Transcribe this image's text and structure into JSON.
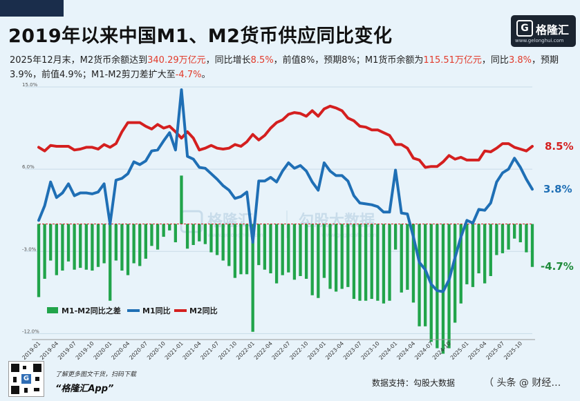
{
  "title": "2019年以来中国M1、M2货币供应同比变化",
  "logo": {
    "name": "格隆汇",
    "g": "G",
    "url": "www.gelonghui.com"
  },
  "subtitle": {
    "p1": "2025年12月末，M2货币余额达到",
    "m2_amount": "340.29万亿元",
    "p2": "，同比增长",
    "m2_growth": "8.5%",
    "p3": "，前值8%，预期8%；M1货币余额为",
    "m1_amount": "115.51万亿元",
    "p4": "，同比",
    "m1_growth": "3.8%",
    "p5": "，预期3.9%，前值4.9%；M1-M2剪刀差扩大至",
    "gap": "-4.7%",
    "p6": "。"
  },
  "watermark": {
    "left": "格隆汇",
    "right": "勾股大数据",
    "url_left": "www.gelonghui.com",
    "url_right": "www.gogudata.com"
  },
  "footer": {
    "hint": "了解更多图文干货，扫码下载",
    "app": "“格隆汇App”",
    "source": "数据支持：勾股大数据",
    "source_extra": "（ 头条 @ 财经…"
  },
  "colors": {
    "m2": "#d41f1f",
    "m1": "#1f6fb5",
    "diff": "#21a44a",
    "zero": "#d41f1f",
    "grid": "#c7dbe8",
    "label_diff": "#1e8a3a"
  },
  "chart_data": {
    "type": "line+bar",
    "ylim": [
      -12.5,
      15
    ],
    "yticks": [
      15,
      6,
      -3,
      -12
    ],
    "ytick_labels": [
      "15.0%",
      "6.0%",
      "-3.0%",
      "-12.0%"
    ],
    "x_labels": [
      "2019-01",
      "2019-04",
      "2019-07",
      "2019-10",
      "2020-01",
      "2020-04",
      "2020-07",
      "2020-10",
      "2021-01",
      "2021-04",
      "2021-07",
      "2021-10",
      "2022-01",
      "2022-04",
      "2022-07",
      "2022-10",
      "2023-01",
      "2023-04",
      "2023-07",
      "2023-10",
      "2024-01",
      "2024-04",
      "2024-07",
      "2024-10",
      "2025-01",
      "2025-04",
      "2025-07",
      "2025-10"
    ],
    "start_month": "2019-01",
    "series": [
      {
        "name": "M2同比",
        "type": "line",
        "values": [
          8.4,
          8.0,
          8.6,
          8.5,
          8.5,
          8.5,
          8.1,
          8.2,
          8.4,
          8.4,
          8.2,
          8.7,
          8.4,
          8.8,
          10.1,
          11.1,
          11.1,
          11.1,
          10.7,
          10.4,
          10.9,
          10.5,
          10.7,
          10.1,
          9.4,
          10.1,
          9.4,
          8.1,
          8.3,
          8.6,
          8.3,
          8.2,
          8.3,
          8.7,
          8.5,
          9.0,
          9.8,
          9.2,
          9.7,
          10.5,
          11.1,
          11.4,
          12.0,
          12.2,
          12.1,
          11.8,
          12.4,
          11.8,
          12.6,
          12.9,
          12.7,
          12.4,
          11.6,
          11.3,
          10.7,
          10.6,
          10.3,
          10.3,
          10.0,
          9.7,
          8.7,
          8.7,
          8.3,
          7.2,
          7.0,
          6.2,
          6.3,
          6.3,
          6.8,
          7.5,
          7.1,
          7.3,
          7.0,
          7.0,
          7.0,
          8.0,
          7.9,
          8.3,
          8.8,
          8.8,
          8.4,
          8.2,
          8.0,
          8.5
        ]
      },
      {
        "name": "M1同比",
        "type": "line",
        "values": [
          0.4,
          2.0,
          4.6,
          2.9,
          3.4,
          4.4,
          3.1,
          3.4,
          3.4,
          3.3,
          3.5,
          4.4,
          0.0,
          4.8,
          5.0,
          5.5,
          6.8,
          6.5,
          6.9,
          8.0,
          8.1,
          9.1,
          10.0,
          8.1,
          14.7,
          7.4,
          7.1,
          6.2,
          6.1,
          5.5,
          4.9,
          4.2,
          3.7,
          2.8,
          3.0,
          3.5,
          -2.0,
          4.7,
          4.7,
          5.1,
          4.6,
          5.8,
          6.7,
          6.1,
          6.4,
          5.8,
          4.6,
          3.7,
          6.7,
          5.8,
          5.3,
          5.3,
          4.7,
          3.1,
          2.3,
          2.2,
          2.1,
          1.9,
          1.3,
          1.3,
          5.9,
          1.2,
          1.1,
          -1.4,
          -4.2,
          -5.0,
          -6.6,
          -7.3,
          -7.4,
          -6.1,
          -3.7,
          -1.4,
          0.4,
          0.1,
          1.6,
          1.5,
          2.3,
          4.6,
          5.6,
          6.0,
          7.2,
          6.2,
          4.9,
          3.8
        ]
      },
      {
        "name": "M1-M2同比之差",
        "type": "bar",
        "values": [
          -8.0,
          -6.0,
          -4.0,
          -5.6,
          -5.1,
          -4.1,
          -5.0,
          -4.8,
          -5.0,
          -5.1,
          -4.7,
          -4.3,
          -8.4,
          -4.0,
          -5.1,
          -5.6,
          -4.3,
          -4.6,
          -3.8,
          -2.4,
          -2.8,
          -1.4,
          -0.7,
          -2.0,
          5.3,
          -2.7,
          -2.3,
          -1.9,
          -2.2,
          -3.1,
          -3.4,
          -4.0,
          -4.6,
          -5.9,
          -5.5,
          -5.5,
          -11.8,
          -4.5,
          -5.0,
          -5.4,
          -6.5,
          -5.6,
          -5.3,
          -6.1,
          -5.7,
          -6.0,
          -7.8,
          -8.1,
          -5.9,
          -7.1,
          -7.4,
          -7.1,
          -6.9,
          -8.2,
          -8.4,
          -8.4,
          -8.2,
          -8.4,
          -8.7,
          -8.4,
          -2.8,
          -7.5,
          -7.2,
          -8.6,
          -11.2,
          -11.2,
          -12.9,
          -13.6,
          -14.2,
          -13.6,
          -10.8,
          -8.7,
          -6.6,
          -6.9,
          -5.4,
          -6.5,
          -5.7,
          -3.4,
          -3.2,
          -2.8,
          -1.6,
          -2.0,
          -3.1,
          -4.7
        ]
      }
    ],
    "legend": [
      {
        "label": "M1-M2同比之差",
        "type": "bar"
      },
      {
        "label": "M1同比",
        "type": "line"
      },
      {
        "label": "M2同比",
        "type": "line"
      }
    ],
    "end_labels": {
      "m2": "8.5%",
      "m1": "3.8%",
      "diff": "-4.7%"
    }
  }
}
